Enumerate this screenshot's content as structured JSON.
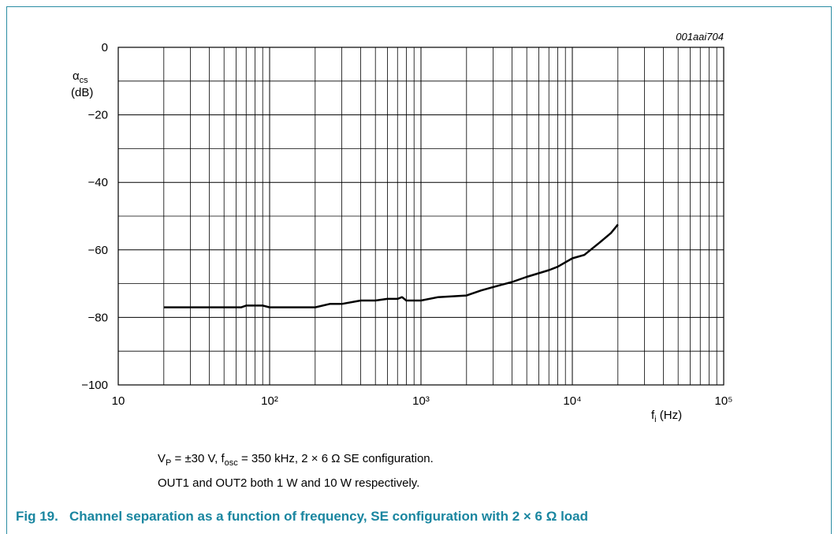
{
  "chart_data": {
    "type": "line",
    "code": "001aai704",
    "ylabel": {
      "main": "α",
      "sub": "cs",
      "unit": "(dB)"
    },
    "xlabel": {
      "main": "f",
      "sub": "i",
      "unit": " (Hz)"
    },
    "x": [
      20,
      30,
      50,
      65,
      70,
      90,
      100,
      150,
      200,
      250,
      300,
      400,
      500,
      600,
      700,
      750,
      800,
      1000,
      1300,
      2000,
      2500,
      3000,
      4000,
      5000,
      7000,
      8000,
      10000,
      12000,
      15000,
      18000,
      20000
    ],
    "series": [
      {
        "color": "#000000",
        "values": [
          -77,
          -77,
          -77,
          -77,
          -76.5,
          -76.5,
          -77,
          -77,
          -77,
          -76,
          -76,
          -75,
          -75,
          -74.5,
          -74.5,
          -74,
          -75,
          -75,
          -74,
          -73.5,
          -72,
          -71,
          -69.5,
          -68,
          -66,
          -65,
          -62.5,
          -61.5,
          -58,
          -55,
          -52.5
        ]
      }
    ],
    "xlim": [
      10,
      100000
    ],
    "xscale": "log",
    "xticks": [
      10,
      {
        "value": 100,
        "label": "10²"
      },
      {
        "value": 1000,
        "label": "10³"
      },
      {
        "value": 10000,
        "label": "10⁴"
      },
      {
        "value": 100000,
        "label": "10⁵"
      }
    ],
    "ylim": [
      -100,
      0
    ],
    "yticks": [
      0,
      {
        "value": -20,
        "label": "−20"
      },
      {
        "value": -40,
        "label": "−40"
      },
      {
        "value": -60,
        "label": "−60"
      },
      {
        "value": -80,
        "label": "−80"
      },
      {
        "value": -100,
        "label": "−100"
      }
    ],
    "minor_yticks": [
      -10,
      -30,
      -50,
      -70,
      -90
    ],
    "grid": true,
    "minor_grid": true
  },
  "notes": [
    [
      {
        "t": "V"
      },
      {
        "t": "P",
        "sub": true
      },
      {
        "t": " = ±30 V, f"
      },
      {
        "t": "osc",
        "sub": true
      },
      {
        "t": " = 350 kHz, 2 × 6 Ω SE configuration."
      }
    ],
    [
      {
        "t": "OUT1 and OUT2 both 1 W and 10 W respectively."
      }
    ]
  ],
  "caption": "Fig 19.   Channel separation as a function of frequency, SE configuration with 2 × 6 Ω load"
}
